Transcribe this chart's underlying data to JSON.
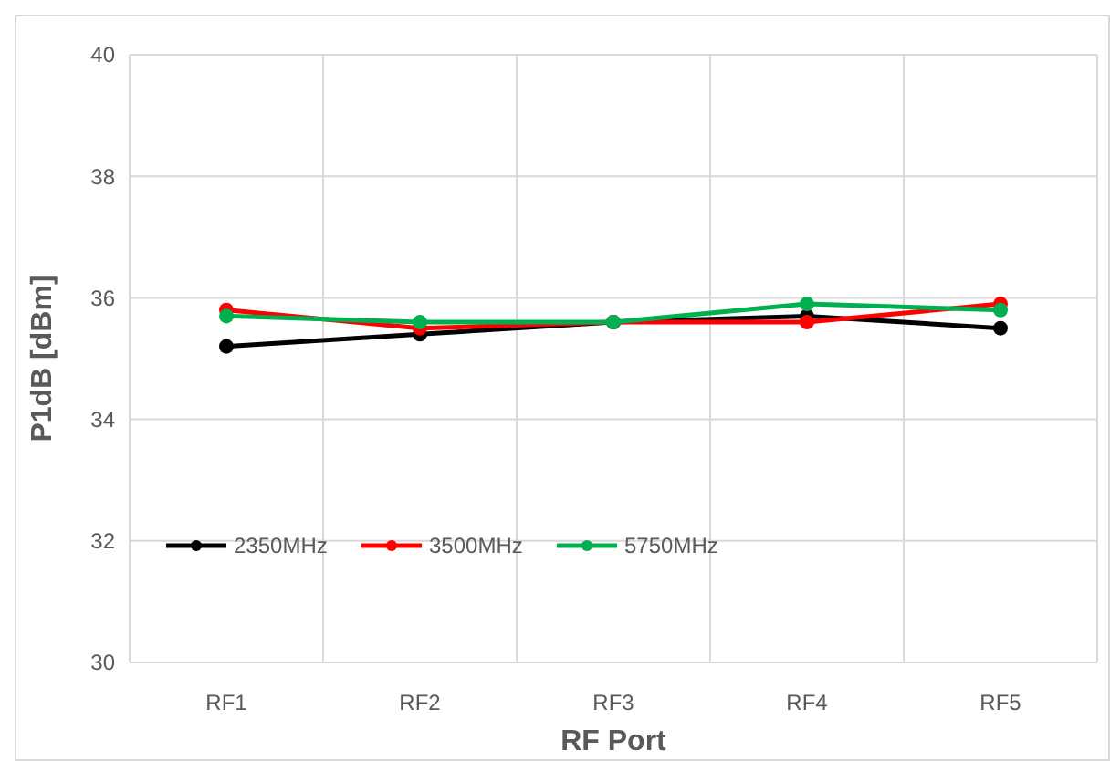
{
  "chart_data": {
    "type": "line",
    "xlabel": "RF Port",
    "ylabel": "P1dB [dBm]",
    "categories": [
      "RF1",
      "RF2",
      "RF3",
      "RF4",
      "RF5"
    ],
    "series": [
      {
        "name": "2350MHz",
        "color": "#000000",
        "values": [
          35.2,
          35.4,
          35.6,
          35.7,
          35.5
        ]
      },
      {
        "name": "3500MHz",
        "color": "#ff0000",
        "values": [
          35.8,
          35.5,
          35.6,
          35.6,
          35.9
        ]
      },
      {
        "name": "5750MHz",
        "color": "#00b050",
        "values": [
          35.7,
          35.6,
          35.6,
          35.9,
          35.8
        ]
      }
    ],
    "ylim": [
      30,
      40
    ],
    "yticks": [
      30,
      32,
      34,
      36,
      38,
      40
    ],
    "grid": true,
    "legend": "bottom left",
    "marker": "circle",
    "line_style": "solid"
  }
}
